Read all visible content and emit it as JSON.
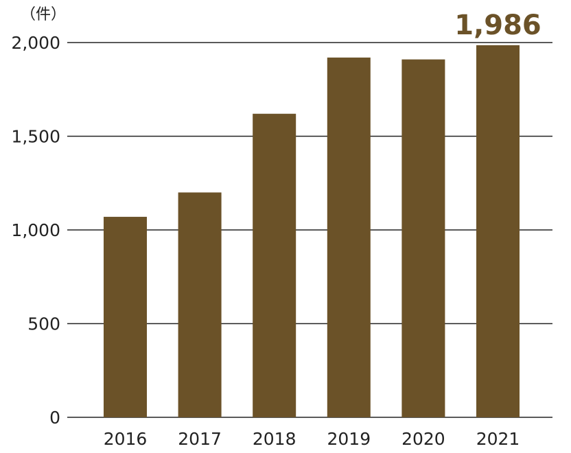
{
  "chart_data": {
    "type": "bar",
    "unit_label": "（件）",
    "categories": [
      "2016",
      "2017",
      "2018",
      "2019",
      "2020",
      "2021"
    ],
    "values": [
      1070,
      1200,
      1620,
      1920,
      1910,
      1986
    ],
    "ylim": [
      0,
      2000
    ],
    "yticks": [
      0,
      500,
      1000,
      1500,
      2000
    ],
    "ytick_labels": [
      "0",
      "500",
      "1,000",
      "1,500",
      "2,000"
    ],
    "grid": true,
    "bar_color": "#6b5228",
    "highlight_label": {
      "category": "2021",
      "text": "1,986",
      "color": "#6b5228"
    }
  }
}
